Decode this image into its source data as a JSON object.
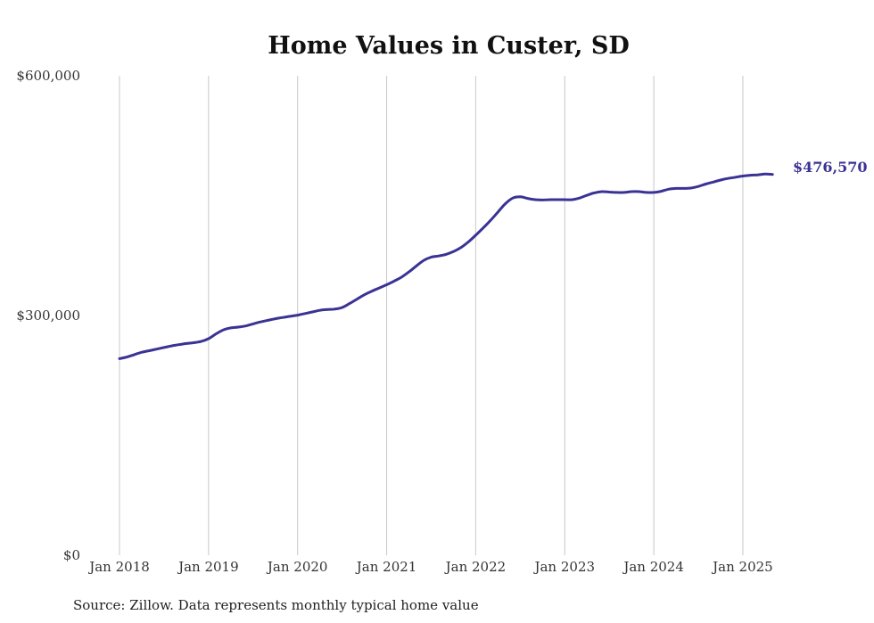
{
  "chart_data": {
    "type": "line",
    "title": "Home Values in Custer, SD",
    "xlabel": "",
    "ylabel": "",
    "ylim": [
      0,
      600000
    ],
    "x_ticks": [
      "2018-01",
      "2019-01",
      "2020-01",
      "2021-01",
      "2022-01",
      "2023-01",
      "2024-01",
      "2025-01"
    ],
    "x_tick_labels": [
      "Jan 2018",
      "Jan 2019",
      "Jan 2020",
      "Jan 2021",
      "Jan 2022",
      "Jan 2023",
      "Jan 2024",
      "Jan 2025"
    ],
    "y_ticks": [
      0,
      300000,
      600000
    ],
    "y_tick_labels": [
      "$0",
      "$300,000",
      "$600,000"
    ],
    "grid": "vertical",
    "series": [
      {
        "color": "#3a3394",
        "points": [
          [
            "2018-01",
            246000
          ],
          [
            "2018-02",
            248000
          ],
          [
            "2018-03",
            251000
          ],
          [
            "2018-04",
            254000
          ],
          [
            "2018-05",
            256000
          ],
          [
            "2018-06",
            258000
          ],
          [
            "2018-07",
            260000
          ],
          [
            "2018-08",
            262000
          ],
          [
            "2018-09",
            263500
          ],
          [
            "2018-10",
            265000
          ],
          [
            "2018-11",
            266000
          ],
          [
            "2018-12",
            267500
          ],
          [
            "2019-01",
            271000
          ],
          [
            "2019-02",
            277000
          ],
          [
            "2019-03",
            282000
          ],
          [
            "2019-04",
            284500
          ],
          [
            "2019-05",
            285500
          ],
          [
            "2019-06",
            287000
          ],
          [
            "2019-07",
            289500
          ],
          [
            "2019-08",
            292000
          ],
          [
            "2019-09",
            294000
          ],
          [
            "2019-10",
            296000
          ],
          [
            "2019-11",
            297500
          ],
          [
            "2019-12",
            299000
          ],
          [
            "2020-01",
            300500
          ],
          [
            "2020-02",
            302500
          ],
          [
            "2020-03",
            304500
          ],
          [
            "2020-04",
            306500
          ],
          [
            "2020-05",
            307500
          ],
          [
            "2020-06",
            308000
          ],
          [
            "2020-07",
            310000
          ],
          [
            "2020-08",
            315000
          ],
          [
            "2020-09",
            320500
          ],
          [
            "2020-10",
            326000
          ],
          [
            "2020-11",
            330500
          ],
          [
            "2020-12",
            334500
          ],
          [
            "2021-01",
            338500
          ],
          [
            "2021-02",
            343000
          ],
          [
            "2021-03",
            348000
          ],
          [
            "2021-04",
            354500
          ],
          [
            "2021-05",
            362000
          ],
          [
            "2021-06",
            369000
          ],
          [
            "2021-07",
            373000
          ],
          [
            "2021-08",
            374500
          ],
          [
            "2021-09",
            376500
          ],
          [
            "2021-10",
            380000
          ],
          [
            "2021-11",
            385000
          ],
          [
            "2021-12",
            392000
          ],
          [
            "2022-01",
            400500
          ],
          [
            "2022-02",
            409500
          ],
          [
            "2022-03",
            419000
          ],
          [
            "2022-04",
            429500
          ],
          [
            "2022-05",
            440000
          ],
          [
            "2022-06",
            447000
          ],
          [
            "2022-07",
            448500
          ],
          [
            "2022-08",
            446500
          ],
          [
            "2022-09",
            445000
          ],
          [
            "2022-10",
            444500
          ],
          [
            "2022-11",
            445000
          ],
          [
            "2022-12",
            445000
          ],
          [
            "2023-01",
            445000
          ],
          [
            "2023-02",
            445000
          ],
          [
            "2023-03",
            447000
          ],
          [
            "2023-04",
            450500
          ],
          [
            "2023-05",
            453500
          ],
          [
            "2023-06",
            455000
          ],
          [
            "2023-07",
            454500
          ],
          [
            "2023-08",
            454000
          ],
          [
            "2023-09",
            454000
          ],
          [
            "2023-10",
            455000
          ],
          [
            "2023-11",
            455000
          ],
          [
            "2023-12",
            454000
          ],
          [
            "2024-01",
            454000
          ],
          [
            "2024-02",
            455500
          ],
          [
            "2024-03",
            458000
          ],
          [
            "2024-04",
            459000
          ],
          [
            "2024-05",
            459000
          ],
          [
            "2024-06",
            459500
          ],
          [
            "2024-07",
            461500
          ],
          [
            "2024-08",
            464500
          ],
          [
            "2024-09",
            467000
          ],
          [
            "2024-10",
            469500
          ],
          [
            "2024-11",
            471500
          ],
          [
            "2024-12",
            473000
          ],
          [
            "2025-01",
            474500
          ],
          [
            "2025-02",
            475500
          ],
          [
            "2025-03",
            476000
          ],
          [
            "2025-04",
            477000
          ],
          [
            "2025-05",
            476570
          ]
        ]
      }
    ],
    "end_label": "$476,570",
    "source": "Source: Zillow. Data represents monthly typical home value"
  }
}
